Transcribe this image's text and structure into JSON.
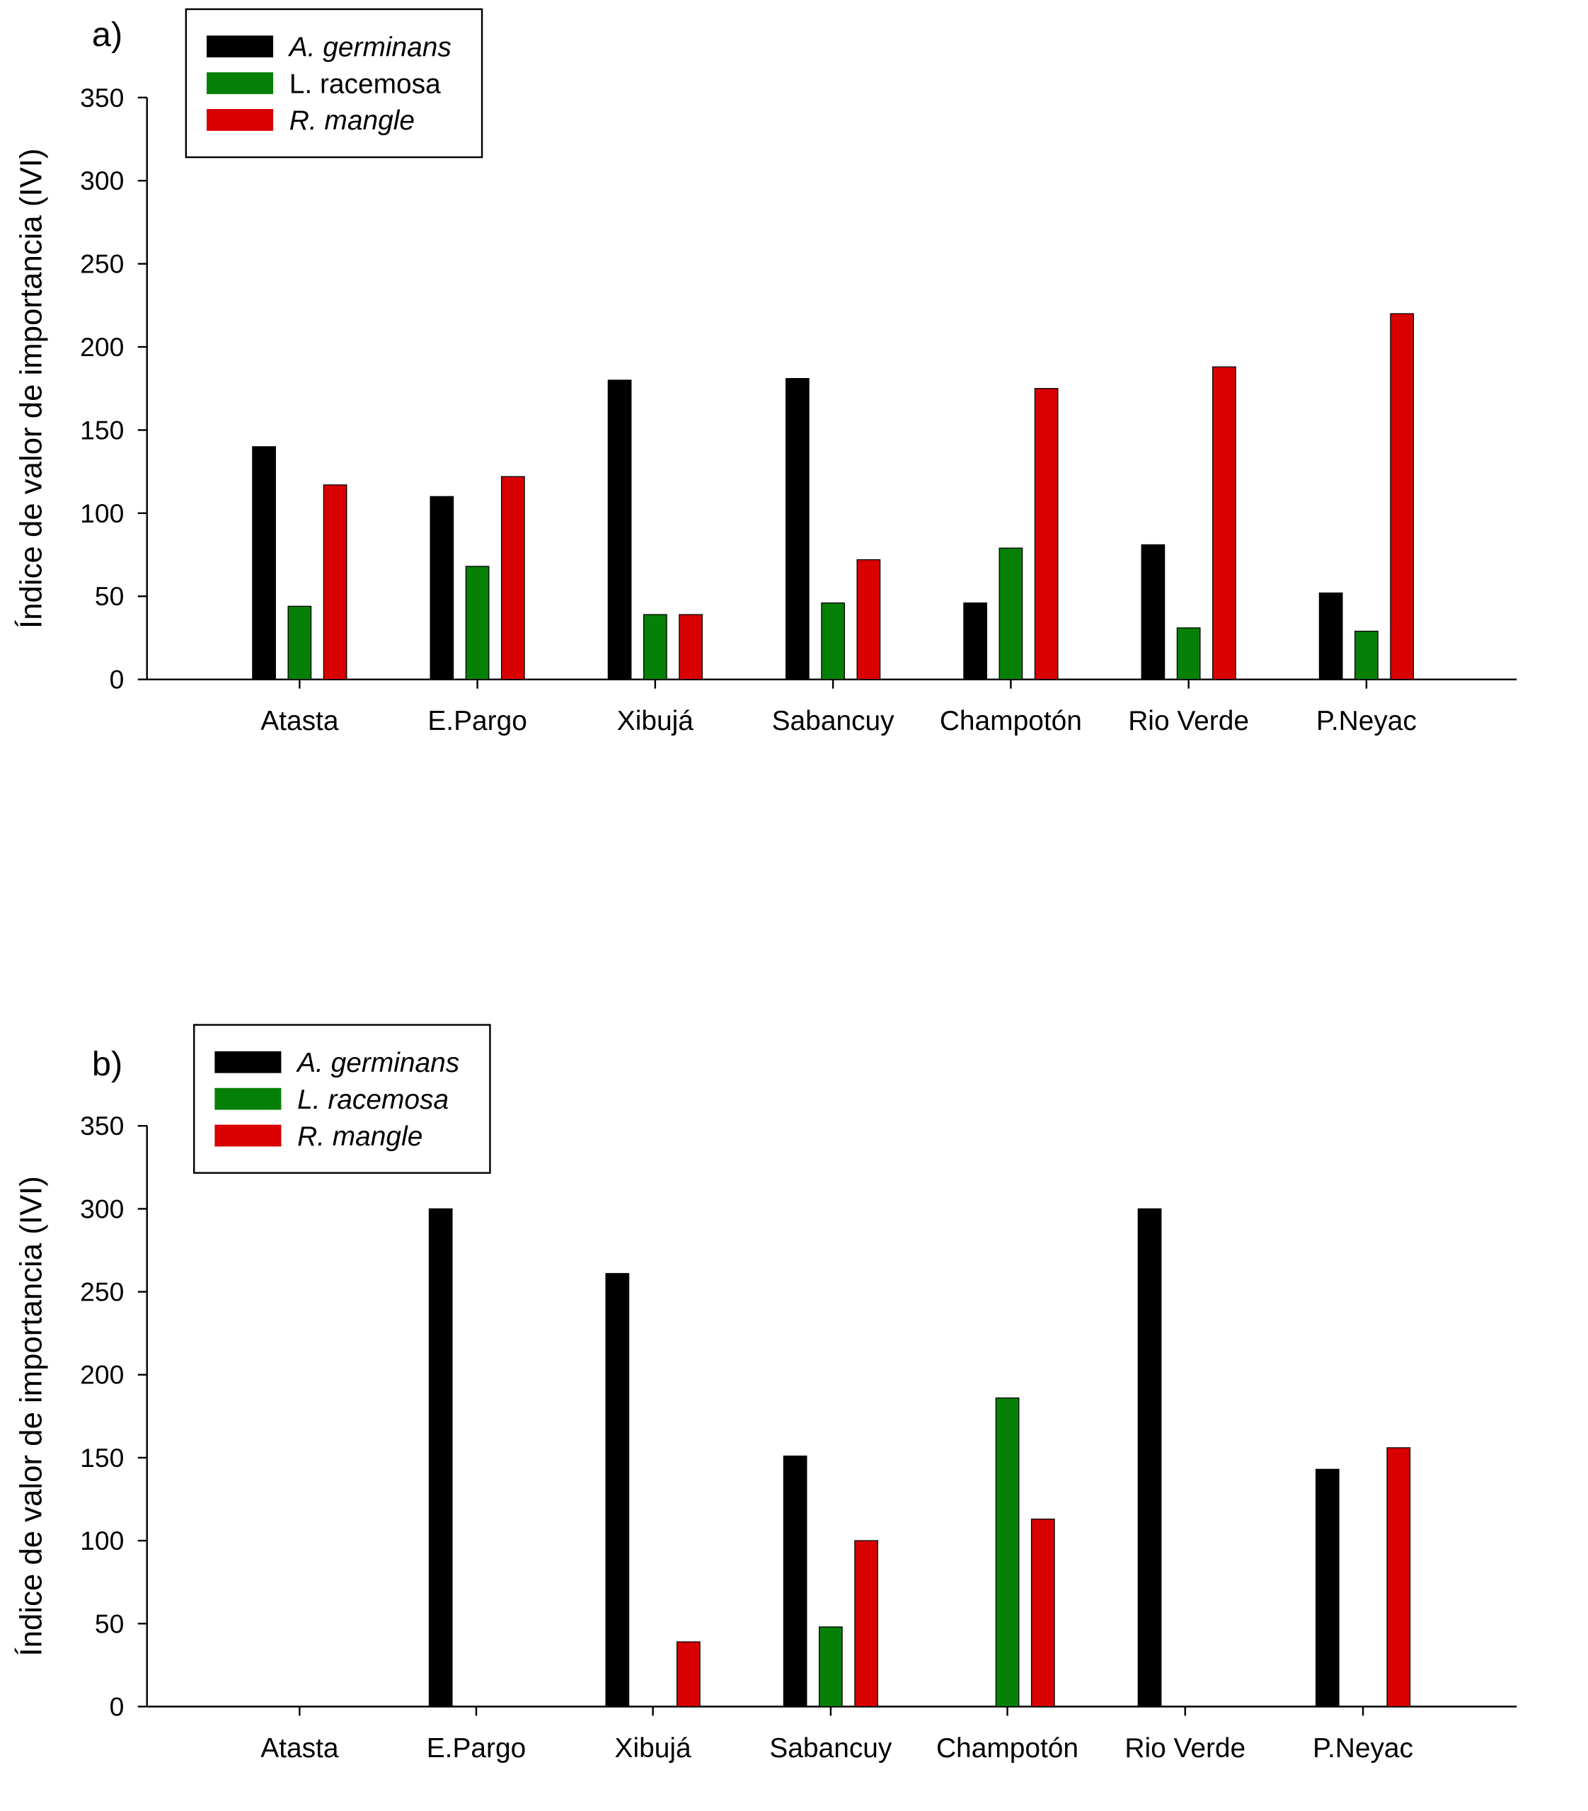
{
  "colors": {
    "A. germinans": "#000000",
    "L. racemosa": "#078007",
    "R. mangle": "#d80000"
  },
  "chart_data": [
    {
      "type": "bar",
      "panel_label": "a)",
      "ylabel": "Índice de valor de importancia (IVI)",
      "xlabel": "",
      "ylim": [
        0,
        350
      ],
      "yticks": [
        "0",
        "50",
        "100",
        "150",
        "200",
        "250",
        "300",
        "350"
      ],
      "categories": [
        "Atasta",
        "E.Pargo",
        "Xibujá",
        "Sabancuy",
        "Champotón",
        "Rio Verde",
        "P.Neyac"
      ],
      "legend_position": "top-left",
      "series": [
        {
          "name": "A. germinans",
          "italic": true,
          "values": [
            140,
            110,
            180,
            181,
            46,
            81,
            52
          ]
        },
        {
          "name": "L. racemosa",
          "italic": false,
          "values": [
            44,
            68,
            39,
            46,
            79,
            31,
            29
          ]
        },
        {
          "name": "R. mangle",
          "italic": true,
          "values": [
            117,
            122,
            39,
            72,
            175,
            188,
            220
          ]
        }
      ]
    },
    {
      "type": "bar",
      "panel_label": "b)",
      "ylabel": "Índice de valor de importancia (IVI)",
      "xlabel": "",
      "ylim": [
        0,
        350
      ],
      "yticks": [
        "0",
        "50",
        "100",
        "150",
        "200",
        "250",
        "300",
        "350"
      ],
      "categories": [
        "Atasta",
        "E.Pargo",
        "Xibujá",
        "Sabancuy",
        "Champotón",
        "Rio Verde",
        "P.Neyac"
      ],
      "legend_position": "top-left",
      "series": [
        {
          "name": "A. germinans",
          "italic": true,
          "values": [
            0,
            300,
            261,
            151,
            0,
            300,
            143
          ]
        },
        {
          "name": "L. racemosa",
          "italic": true,
          "values": [
            0,
            0,
            0,
            48,
            186,
            0,
            0
          ]
        },
        {
          "name": "R. mangle",
          "italic": true,
          "values": [
            0,
            0,
            39,
            100,
            113,
            0,
            156
          ]
        }
      ]
    }
  ]
}
